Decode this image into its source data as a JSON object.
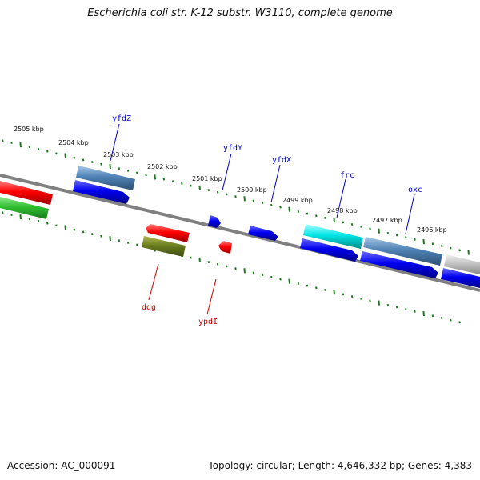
{
  "title": "Escherichia coli str. K-12 substr. W3110, complete genome",
  "footer": {
    "accession": "Accession: AC_000091",
    "summary": "Topology: circular; Length: 4,646,332 bp; Genes: 4,383"
  },
  "colors": {
    "backbone": "#808080",
    "tick_marks": "#1a7a1a",
    "forward_label": "#0000cc",
    "reverse_label": "#cc0000"
  },
  "scale_labels": [
    "2505 kbp",
    "2504 kbp",
    "2503 kbp",
    "2502 kbp",
    "2501 kbp",
    "2500 kbp",
    "2499 kbp",
    "2498 kbp",
    "2497 kbp",
    "2496 kbp"
  ],
  "gene_labels": {
    "forward": [
      "yfdZ",
      "yfdY",
      "yfdX",
      "frc",
      "oxc"
    ],
    "reverse": [
      "ddg",
      "ypdI"
    ]
  }
}
